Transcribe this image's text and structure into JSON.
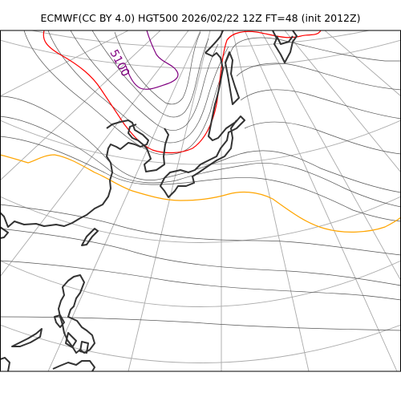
{
  "title": "ECMWF(CC BY 4.0) HGT500 2026/02/22 12Z FT=48 (init 2012Z)",
  "map": {
    "projection": "polar stereographic",
    "field": "500 hPa geopotential height",
    "colors": {
      "background": "#ffffff",
      "coastline": "#333333",
      "graticule": "#aaaaaa",
      "contour": "#555555",
      "contour_5100": "#800080",
      "contour_5400": "#ff0000",
      "contour_5700": "#ffa500"
    },
    "contour_labels": [
      {
        "text": "5100",
        "color": "#800080"
      }
    ]
  }
}
